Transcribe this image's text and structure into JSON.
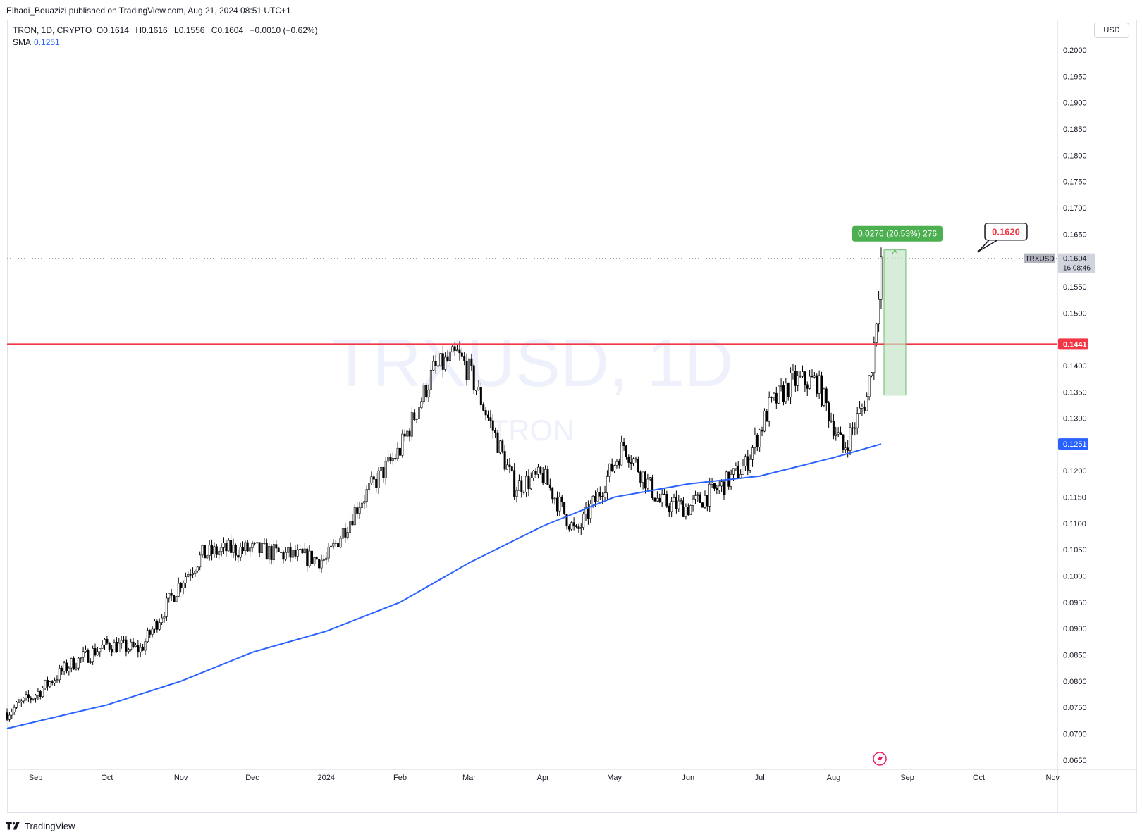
{
  "header": {
    "publisher_line": "Elhadi_Bouazizi published on TradingView.com, Aug 21, 2024 08:51 UTC+1"
  },
  "legend": {
    "symbol_line": "TRON, 1D, CRYPTO",
    "open_label": "O",
    "open_value": "0.1614",
    "high_label": "H",
    "high_value": "0.1616",
    "low_label": "L",
    "low_value": "0.1556",
    "close_label": "C",
    "close_value": "0.1604",
    "change": "−0.0010 (−0.62%)",
    "sma_label": "SMA",
    "sma_value": "0.1251"
  },
  "price_axis": {
    "currency": "USD",
    "ticks": [
      "0.2000",
      "0.1950",
      "0.1900",
      "0.1850",
      "0.1800",
      "0.1750",
      "0.1700",
      "0.1650",
      "0.1550",
      "0.1500",
      "0.1400",
      "0.1350",
      "0.1300",
      "0.1200",
      "0.1150",
      "0.1100",
      "0.1050",
      "0.1000",
      "0.0950",
      "0.0900",
      "0.0850",
      "0.0800",
      "0.0750",
      "0.0700",
      "0.0650"
    ],
    "last_price_label": "0.1604",
    "countdown": "16:08:46",
    "symbol_tag": "TRXUSD",
    "hline_label": "0.1441",
    "sma_label": "0.1251"
  },
  "time_axis": {
    "labels": [
      "Sep",
      "Oct",
      "Nov",
      "Dec",
      "2024",
      "Feb",
      "Mar",
      "Apr",
      "May",
      "Jun",
      "Jul",
      "Aug",
      "Sep",
      "Oct",
      "Nov"
    ]
  },
  "watermark": {
    "main": "TRXUSD, 1D",
    "sub": "TRON"
  },
  "annotations": {
    "measure_label": "0.0276 (20.53%) 276",
    "callout_label": "0.1620"
  },
  "colors": {
    "hline": "#f23645",
    "sma": "#2962ff",
    "measure_fill": "#c8e6c9",
    "measure_label_bg": "#4caf50",
    "candle": "#000000",
    "watermark": "#eef0fb"
  },
  "chart_data": {
    "type": "candlestick",
    "symbol": "TRXUSD",
    "interval": "1D",
    "ylim": [
      0.0635,
      0.2055
    ],
    "x": [
      "2023-08-20",
      "2023-09-01",
      "2023-09-15",
      "2023-10-01",
      "2023-10-15",
      "2023-11-01",
      "2023-11-10",
      "2023-11-20",
      "2023-12-01",
      "2023-12-15",
      "2024-01-01",
      "2024-01-15",
      "2024-02-01",
      "2024-02-15",
      "2024-02-25",
      "2024-03-01",
      "2024-03-10",
      "2024-03-20",
      "2024-04-01",
      "2024-04-15",
      "2024-04-25",
      "2024-05-05",
      "2024-05-20",
      "2024-06-01",
      "2024-06-15",
      "2024-06-25",
      "2024-07-05",
      "2024-07-15",
      "2024-07-25",
      "2024-08-05",
      "2024-08-15",
      "2024-08-18",
      "2024-08-21"
    ],
    "close": [
      0.074,
      0.0775,
      0.083,
      0.087,
      0.086,
      0.099,
      0.104,
      0.105,
      0.105,
      0.104,
      0.103,
      0.114,
      0.124,
      0.139,
      0.142,
      0.139,
      0.129,
      0.117,
      0.119,
      0.108,
      0.116,
      0.125,
      0.114,
      0.113,
      0.117,
      0.121,
      0.132,
      0.137,
      0.137,
      0.124,
      0.134,
      0.144,
      0.1604
    ],
    "sma": {
      "name": "SMA",
      "x": [
        "2023-08-20",
        "2023-10-01",
        "2023-11-01",
        "2023-12-01",
        "2024-01-01",
        "2024-02-01",
        "2024-03-01",
        "2024-04-01",
        "2024-05-01",
        "2024-06-01",
        "2024-07-01",
        "2024-08-01",
        "2024-08-21"
      ],
      "values": [
        0.071,
        0.0755,
        0.08,
        0.0855,
        0.0895,
        0.095,
        0.1025,
        0.1095,
        0.115,
        0.1175,
        0.119,
        0.1225,
        0.1251
      ]
    },
    "horizontal_line": 0.1441,
    "last_price": 0.1604,
    "measure": {
      "from": 0.1344,
      "to": 0.162,
      "change": 0.0276,
      "percent": 20.53,
      "ticks": 276
    },
    "callout_price": 0.162
  }
}
